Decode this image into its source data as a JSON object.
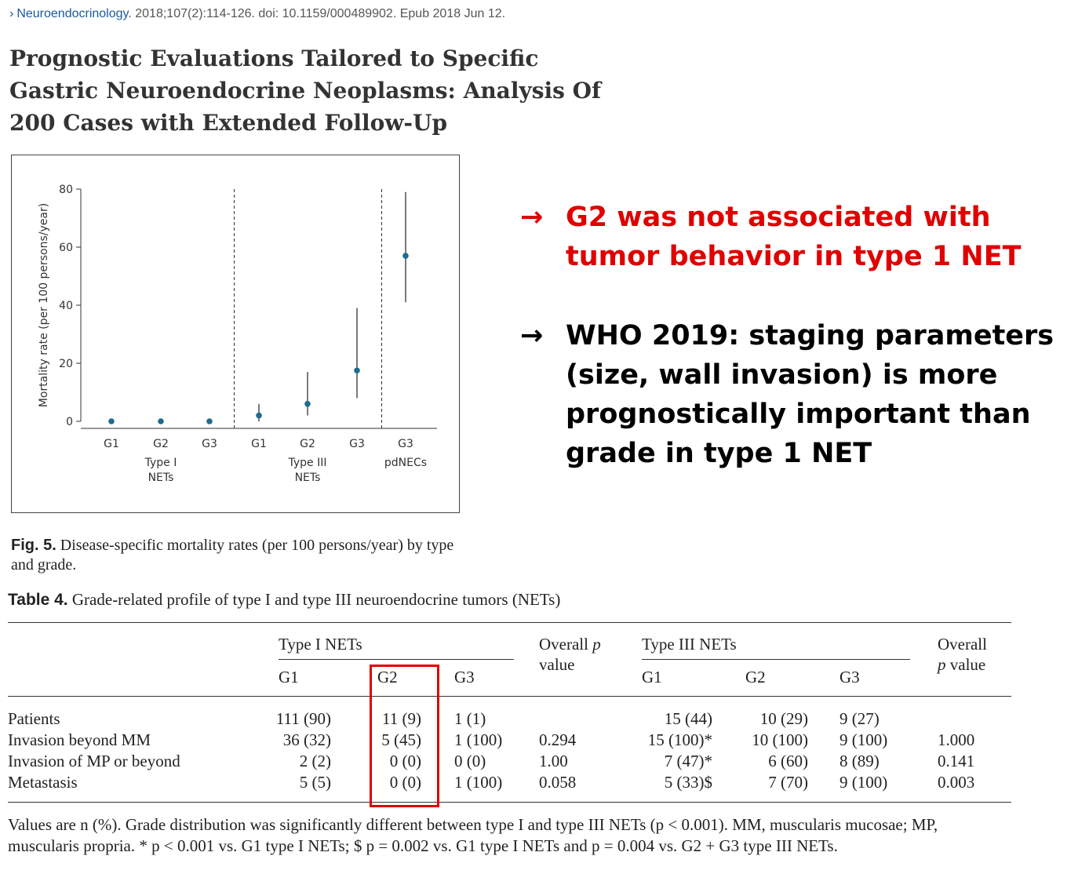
{
  "citation": {
    "journal": "Neuroendocrinology.",
    "details": "2018;107(2):114-126. doi: 10.1159/000489902. Epub 2018 Jun 12."
  },
  "title": "Prognostic Evaluations Tailored to Specific Gastric Neuroendocrine Neoplasms: Analysis Of 200 Cases with Extended Follow-Up",
  "chart_data": {
    "type": "scatter",
    "ylabel": "Mortality rate (per 100 persons/year)",
    "ylim": [
      0,
      80
    ],
    "yticks": [
      0,
      20,
      40,
      60,
      80
    ],
    "categories": [
      "G1",
      "G2",
      "G3",
      "G1",
      "G2",
      "G3",
      "G3"
    ],
    "groups": [
      {
        "label_line1": "Type I",
        "label_line2": "NETs"
      },
      {
        "label_line1": "Type III",
        "label_line2": "NETs"
      },
      {
        "label_line1": "pdNECs",
        "label_line2": ""
      }
    ],
    "values": [
      0,
      0,
      0,
      2,
      6,
      17.5,
      57
    ],
    "ci_low": [
      0,
      0,
      0,
      0,
      2,
      8,
      41
    ],
    "ci_high": [
      0,
      0,
      0,
      6,
      17,
      39,
      79
    ],
    "point_color": "#1f6b8c"
  },
  "figure_caption": {
    "label": "Fig. 5.",
    "text": " Disease-specific mortality rates (per 100 persons/year) by type and grade."
  },
  "notes": [
    {
      "arrow": "→",
      "text": "G2 was not associated with tumor behavior in type 1 NET",
      "color": "#e00000"
    },
    {
      "arrow": "→",
      "text": "WHO 2019: staging parameters (size, wall invasion) is more prognostically important than grade in type 1 NET",
      "color": "#000000"
    }
  ],
  "table": {
    "label": "Table 4.",
    "caption": " Grade-related profile of type I and type III neuroendocrine tumors (NETs)",
    "group1": "Type I NETs",
    "overall1_a": "Overall ",
    "overall1_p": "p",
    "overall1_b": " value",
    "group2": "Type III NETs",
    "overall2_a": "Overall",
    "overall2_p": "p",
    "overall2_b": " value",
    "subheaders": [
      "G1",
      "G2",
      "G3",
      "G1",
      "G2",
      "G3"
    ],
    "rows": [
      {
        "label": "Patients",
        "t1": [
          "111 (90)",
          "11 (9)",
          "1 (1)"
        ],
        "p1": "",
        "t3": [
          "15 (44)",
          "10 (29)",
          "9 (27)"
        ],
        "p3": ""
      },
      {
        "label": "Invasion beyond MM",
        "t1": [
          "36 (32)",
          "5 (45)",
          "1 (100)"
        ],
        "p1": "0.294",
        "t3": [
          "15 (100)*",
          "10 (100)",
          "9 (100)"
        ],
        "p3": "1.000"
      },
      {
        "label": "Invasion of MP or beyond",
        "t1": [
          "2 (2)",
          "0 (0)",
          "0 (0)"
        ],
        "p1": "1.00",
        "t3": [
          "7 (47)*",
          "6 (60)",
          "8 (89)"
        ],
        "p3": "0.141"
      },
      {
        "label": "Metastasis",
        "t1": [
          "5 (5)",
          "0 (0)",
          "1 (100)"
        ],
        "p1": "0.058",
        "t3": [
          "5 (33)$",
          "7 (70)",
          "9 (100)"
        ],
        "p3": "0.003"
      }
    ],
    "footnote": "Values are n (%). Grade distribution was significantly different between type I and type III NETs (p < 0.001). MM, muscularis mucosae; MP, muscularis propria. * p < 0.001 vs. G1 type I NETs; $ p = 0.002 vs. G1 type I NETs and p = 0.004 vs. G2 + G3 type III NETs.",
    "highlight_color": "#e00000"
  }
}
